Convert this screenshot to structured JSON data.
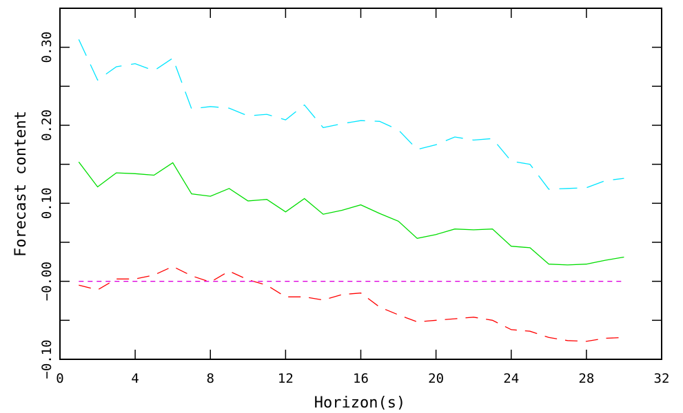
{
  "chart_data": {
    "type": "line",
    "xlabel": "Horizon(s)",
    "ylabel": "Forecast content",
    "xlim": [
      0,
      32
    ],
    "ylim": [
      -0.1,
      0.35
    ],
    "x_ticks": [
      0,
      4,
      8,
      12,
      16,
      20,
      24,
      28,
      32
    ],
    "x_tick_labels": [
      "0",
      "4",
      "8",
      "12",
      "16",
      "20",
      "24",
      "28",
      "32"
    ],
    "y_ticks": [
      -0.1,
      0.0,
      0.1,
      0.2,
      0.3
    ],
    "y_tick_labels": [
      "−0.10",
      "−0.00",
      "0.10",
      "0.20",
      "0.30"
    ],
    "y_minor_ticks": [
      -0.05,
      0.05,
      0.15,
      0.25
    ],
    "grid": false,
    "x": [
      1,
      2,
      3,
      4,
      5,
      6,
      7,
      8,
      9,
      10,
      11,
      12,
      13,
      14,
      15,
      16,
      17,
      18,
      19,
      20,
      21,
      22,
      23,
      24,
      25,
      26,
      27,
      28,
      29,
      30
    ],
    "series": [
      {
        "color": "#00e5ff",
        "style": "dashed-long",
        "values": [
          0.31,
          0.258,
          0.275,
          0.279,
          0.27,
          0.286,
          0.221,
          0.224,
          0.222,
          0.212,
          0.214,
          0.207,
          0.226,
          0.197,
          0.202,
          0.206,
          0.205,
          0.194,
          0.169,
          0.175,
          0.185,
          0.181,
          0.183,
          0.154,
          0.15,
          0.118,
          0.119,
          0.12,
          0.129,
          0.132
        ]
      },
      {
        "color": "#00dd00",
        "style": "solid",
        "values": [
          0.153,
          0.121,
          0.139,
          0.138,
          0.136,
          0.152,
          0.112,
          0.109,
          0.119,
          0.103,
          0.105,
          0.089,
          0.106,
          0.086,
          0.091,
          0.098,
          0.087,
          0.077,
          0.055,
          0.06,
          0.067,
          0.066,
          0.067,
          0.045,
          0.043,
          0.022,
          0.021,
          0.022,
          0.027,
          0.031
        ]
      },
      {
        "color": "#ff0000",
        "style": "dashed",
        "values": [
          -0.005,
          -0.011,
          0.003,
          0.003,
          0.008,
          0.019,
          0.007,
          -0.001,
          0.013,
          0.002,
          -0.005,
          -0.02,
          -0.02,
          -0.024,
          -0.017,
          -0.015,
          -0.033,
          -0.043,
          -0.052,
          -0.05,
          -0.048,
          -0.046,
          -0.05,
          -0.062,
          -0.064,
          -0.072,
          -0.076,
          -0.077,
          -0.073,
          -0.072
        ]
      },
      {
        "color": "#dd00dd",
        "style": "dashed-short",
        "values": [
          0,
          0,
          0,
          0,
          0,
          0,
          0,
          0,
          0,
          0,
          0,
          0,
          0,
          0,
          0,
          0,
          0,
          0,
          0,
          0,
          0,
          0,
          0,
          0,
          0,
          0,
          0,
          0,
          0,
          0
        ]
      }
    ]
  }
}
